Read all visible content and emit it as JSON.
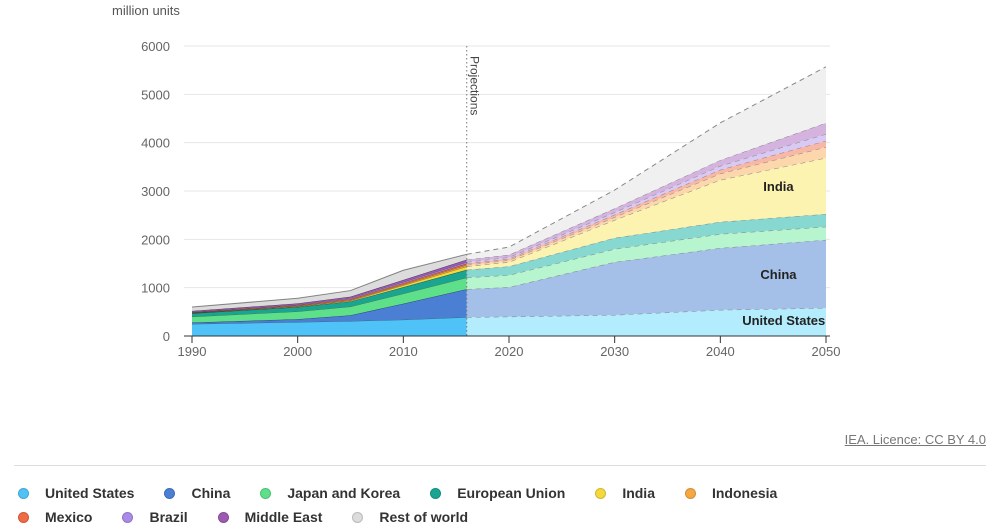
{
  "chart_data": {
    "type": "area",
    "stacked": true,
    "ylabel": "million units",
    "ylim": [
      0,
      6000
    ],
    "yticks": [
      0,
      1000,
      2000,
      3000,
      4000,
      5000,
      6000
    ],
    "xlim": [
      1990,
      2050
    ],
    "xticks": [
      1990,
      2000,
      2010,
      2020,
      2030,
      2040,
      2050
    ],
    "grid": true,
    "projection_start": 2016,
    "projection_label": "Projections",
    "x": [
      1990,
      2000,
      2005,
      2010,
      2016,
      2020,
      2030,
      2040,
      2050
    ],
    "series": [
      {
        "name": "United States",
        "color": "#4fc3f7",
        "proj_color": "#b3ecfd",
        "values": [
          250,
          290,
          310,
          340,
          390,
          400,
          435,
          540,
          580
        ]
      },
      {
        "name": "China",
        "color": "#4a7fd4",
        "proj_color": "#a4c0e8",
        "values": [
          30,
          60,
          120,
          330,
          580,
          610,
          1095,
          1280,
          1410
        ]
      },
      {
        "name": "Japan and Korea",
        "color": "#5ee08a",
        "proj_color": "#b6f5cd",
        "values": [
          120,
          160,
          180,
          210,
          240,
          250,
          270,
          290,
          270
        ]
      },
      {
        "name": "European Union",
        "color": "#1aa593",
        "proj_color": "#86d8d0",
        "values": [
          70,
          90,
          105,
          130,
          160,
          180,
          230,
          250,
          265
        ]
      },
      {
        "name": "India",
        "color": "#f5d83a",
        "proj_color": "#fdf3b0",
        "values": [
          5,
          10,
          15,
          40,
          70,
          90,
          370,
          870,
          1160
        ]
      },
      {
        "name": "Indonesia",
        "color": "#f5a742",
        "proj_color": "#fcd7ab",
        "values": [
          5,
          10,
          15,
          20,
          30,
          40,
          60,
          130,
          225
        ]
      },
      {
        "name": "Mexico",
        "color": "#ef6a45",
        "proj_color": "#f9b8a6",
        "values": [
          10,
          15,
          20,
          25,
          30,
          30,
          50,
          80,
          130
        ]
      },
      {
        "name": "Brazil",
        "color": "#a98ae8",
        "proj_color": "#d9c9f5",
        "values": [
          10,
          15,
          20,
          25,
          30,
          30,
          50,
          80,
          140
        ]
      },
      {
        "name": "Middle East",
        "color": "#9c5bb0",
        "proj_color": "#d4b4df",
        "values": [
          20,
          25,
          30,
          40,
          50,
          50,
          80,
          120,
          230
        ]
      },
      {
        "name": "Rest of world",
        "color": "#dcdcdc",
        "proj_color": "#f0f0f0",
        "values": [
          80,
          105,
          125,
          200,
          110,
          160,
          380,
          770,
          1160
        ]
      }
    ],
    "annotations": [
      {
        "text": "India",
        "series": "India"
      },
      {
        "text": "China",
        "series": "China"
      },
      {
        "text": "United States",
        "series": "United States"
      }
    ]
  },
  "licence": "IEA. Licence: CC BY 4.0"
}
